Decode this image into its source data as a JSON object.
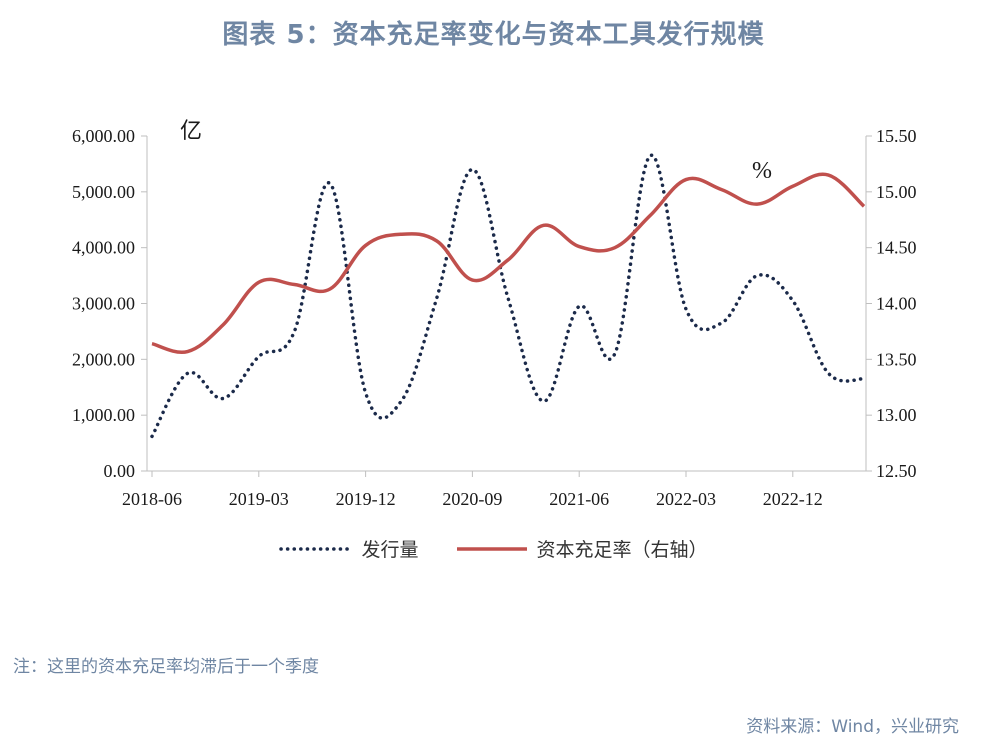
{
  "title": "图表 5：资本充足率变化与资本工具发行规模",
  "note": "注：这里的资本充足率均滞后于一个季度",
  "source": "资料来源：Wind，兴业研究",
  "chart_data": {
    "type": "line",
    "left_axis": {
      "unit_label": "亿",
      "ylim": [
        0,
        6000
      ],
      "ticks": [
        "0.00",
        "1,000.00",
        "2,000.00",
        "3,000.00",
        "4,000.00",
        "5,000.00",
        "6,000.00"
      ]
    },
    "right_axis": {
      "unit_label": "%",
      "ylim": [
        12.5,
        15.5
      ],
      "ticks": [
        "12.50",
        "13.00",
        "13.50",
        "14.00",
        "14.50",
        "15.00",
        "15.50"
      ]
    },
    "x_tick_labels": [
      "2018-06",
      "2019-03",
      "2019-12",
      "2020-09",
      "2021-06",
      "2022-03",
      "2022-12"
    ],
    "x": [
      "2018-06",
      "2018-09",
      "2018-12",
      "2019-03",
      "2019-06",
      "2019-09",
      "2019-12",
      "2020-03",
      "2020-06",
      "2020-09",
      "2020-12",
      "2021-03",
      "2021-06",
      "2021-09",
      "2021-12",
      "2022-03",
      "2022-06",
      "2022-09",
      "2022-12",
      "2023-03",
      "2023-06"
    ],
    "series": [
      {
        "name": "发行量",
        "axis": "left",
        "style": "dotted",
        "color": "#1b2a4a",
        "values": [
          620,
          1750,
          1300,
          2050,
          2500,
          5150,
          1400,
          1250,
          3100,
          5400,
          3100,
          1250,
          2950,
          2100,
          5650,
          2900,
          2650,
          3500,
          3050,
          1750,
          1650
        ]
      },
      {
        "name": "资本充足率（右轴）",
        "axis": "right",
        "style": "solid",
        "color": "#c0504d",
        "values": [
          13.64,
          13.57,
          13.81,
          14.19,
          14.17,
          14.13,
          14.52,
          14.62,
          14.56,
          14.21,
          14.39,
          14.7,
          14.51,
          14.5,
          14.79,
          15.11,
          15.02,
          14.89,
          15.05,
          15.15,
          14.87
        ]
      }
    ]
  }
}
